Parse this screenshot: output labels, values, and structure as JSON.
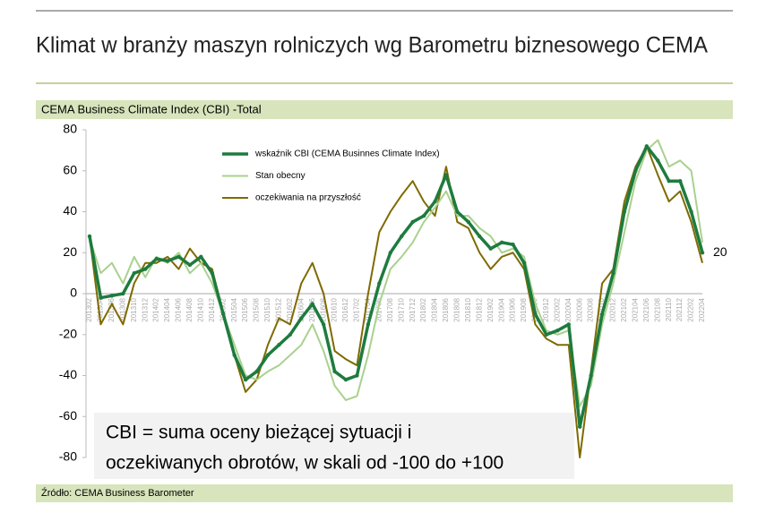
{
  "header": {
    "title": "Klimat w branży maszyn rolniczych wg Barometru biznesowego CEMA"
  },
  "chart_data": {
    "type": "line",
    "title": "CEMA Business Climate Index (CBI) -Total",
    "source": "Źródło: CEMA Business Barometer",
    "annotation": [
      "CBI = suma oceny bieżącej sytuacji i",
      "oczekiwanych obrotów, w skali od -100 do +100"
    ],
    "categories": [
      "201302",
      "201304",
      "201306",
      "201308",
      "201310",
      "201312",
      "201402",
      "201404",
      "201406",
      "201408",
      "201410",
      "201412",
      "201502",
      "201504",
      "201506",
      "201508",
      "201510",
      "201512",
      "201602",
      "201604",
      "201606",
      "201608",
      "201610",
      "201612",
      "201702",
      "201704",
      "201706",
      "201708",
      "201710",
      "201712",
      "201802",
      "201804",
      "201806",
      "201808",
      "201810",
      "201812",
      "201902",
      "201904",
      "201906",
      "201908",
      "201910",
      "201912",
      "202002",
      "202004",
      "202006",
      "202008",
      "202010",
      "202012",
      "202102",
      "202104",
      "202106",
      "202108",
      "202110",
      "202112",
      "202202",
      "202204"
    ],
    "series": [
      {
        "name": "wskaźnik CBI (CEMA Businnes Climate Index)",
        "color": "#1e7b3e",
        "width": 3.5,
        "values": [
          28,
          -2,
          -1,
          0,
          10,
          12,
          17,
          16,
          18,
          14,
          18,
          10,
          -10,
          -30,
          -42,
          -38,
          -30,
          -25,
          -20,
          -12,
          -5,
          -15,
          -38,
          -42,
          -40,
          -15,
          5,
          20,
          28,
          35,
          38,
          45,
          58,
          40,
          35,
          28,
          22,
          25,
          24,
          15,
          -10,
          -20,
          -18,
          -15,
          -65,
          -40,
          -10,
          10,
          40,
          60,
          72,
          65,
          55,
          55,
          40,
          20
        ]
      },
      {
        "name": "Stan obecny",
        "color": "#a9d18e",
        "width": 2,
        "values": [
          27,
          10,
          15,
          5,
          18,
          8,
          18,
          15,
          20,
          10,
          15,
          5,
          -10,
          -25,
          -40,
          -42,
          -38,
          -35,
          -30,
          -25,
          -15,
          -28,
          -45,
          -52,
          -50,
          -30,
          -5,
          12,
          18,
          25,
          35,
          42,
          50,
          38,
          38,
          32,
          28,
          20,
          22,
          18,
          -5,
          -18,
          -20,
          -18,
          -55,
          -45,
          -15,
          5,
          30,
          55,
          70,
          75,
          62,
          65,
          60,
          25
        ]
      },
      {
        "name": "oczekiwania na przyszłość",
        "color": "#7f6a00",
        "width": 2,
        "values": [
          28,
          -15,
          -5,
          -15,
          5,
          15,
          15,
          18,
          12,
          22,
          15,
          12,
          -10,
          -30,
          -48,
          -42,
          -25,
          -12,
          -15,
          5,
          15,
          0,
          -28,
          -32,
          -35,
          0,
          30,
          40,
          48,
          55,
          45,
          38,
          62,
          35,
          32,
          20,
          12,
          18,
          20,
          12,
          -15,
          -22,
          -25,
          -25,
          -80,
          -38,
          5,
          12,
          45,
          62,
          72,
          58,
          45,
          50,
          35,
          15
        ]
      }
    ],
    "ylim": [
      -80,
      80
    ],
    "yticks": [
      -80,
      -60,
      -40,
      -20,
      0,
      20,
      40,
      60,
      80
    ]
  }
}
